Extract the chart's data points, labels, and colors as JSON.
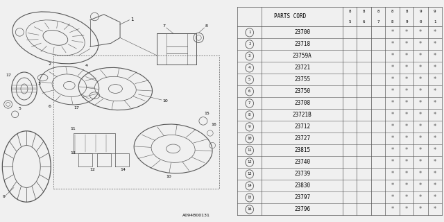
{
  "bg_color": "#f0f0f0",
  "table_header": "PARTS CORD",
  "col_headers": [
    "85",
    "86",
    "87",
    "88",
    "89",
    "90",
    "91"
  ],
  "parts": [
    {
      "num": 1,
      "code": "23700"
    },
    {
      "num": 2,
      "code": "23718"
    },
    {
      "num": 3,
      "code": "23759A"
    },
    {
      "num": 4,
      "code": "23721"
    },
    {
      "num": 5,
      "code": "23755"
    },
    {
      "num": 6,
      "code": "23750"
    },
    {
      "num": 7,
      "code": "23708"
    },
    {
      "num": 8,
      "code": "23721B"
    },
    {
      "num": 9,
      "code": "23712"
    },
    {
      "num": 10,
      "code": "23727"
    },
    {
      "num": 11,
      "code": "23815"
    },
    {
      "num": 12,
      "code": "23740"
    },
    {
      "num": 13,
      "code": "23739"
    },
    {
      "num": 14,
      "code": "23830"
    },
    {
      "num": 15,
      "code": "23797"
    },
    {
      "num": 16,
      "code": "23796"
    }
  ],
  "star_cols": [
    3,
    4,
    5,
    6
  ],
  "diagram_note": "A094B00131",
  "line_color": "#555555",
  "text_color": "#000000"
}
